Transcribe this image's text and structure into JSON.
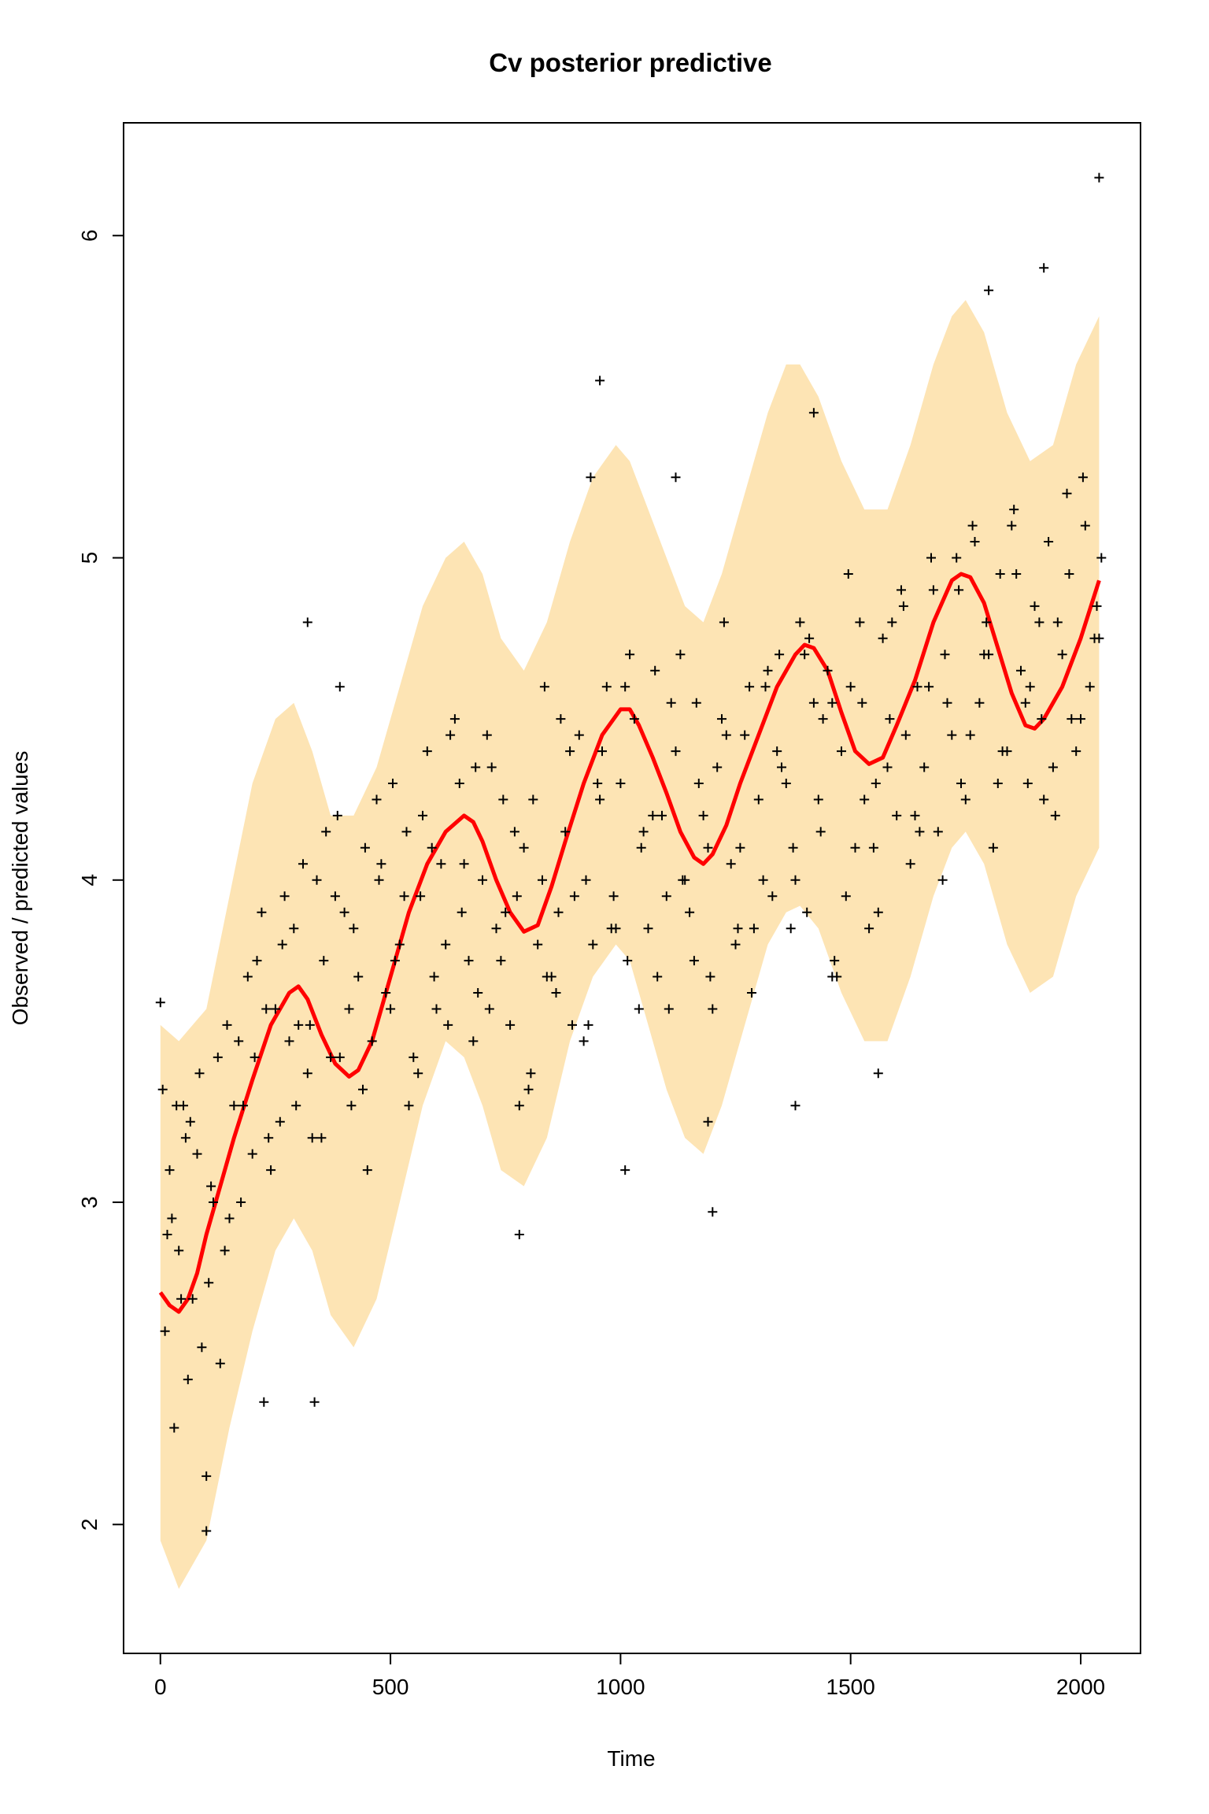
{
  "chart_data": {
    "type": "scatter",
    "title": "Cv posterior predictive",
    "xlabel": "Time",
    "ylabel": "Observed / predicted values",
    "xlim": [
      -80,
      2130
    ],
    "ylim": [
      1.6,
      6.35
    ],
    "xticks": [
      0,
      500,
      1000,
      1500,
      2000
    ],
    "xtick_labels": [
      "0",
      "500",
      "1000",
      "1500",
      "2000"
    ],
    "yticks": [
      2,
      3,
      4,
      5,
      6
    ],
    "ytick_labels": [
      "2",
      "3",
      "4",
      "5",
      "6"
    ],
    "grid": false,
    "colors": {
      "band": "#fde4b4",
      "mean_line": "#ff0000",
      "points": "#000000",
      "axes": "#000000"
    },
    "series": [
      {
        "kind": "band",
        "x": [
          0,
          40,
          100,
          150,
          200,
          250,
          290,
          330,
          370,
          420,
          470,
          520,
          570,
          620,
          660,
          700,
          740,
          790,
          840,
          890,
          940,
          990,
          1020,
          1060,
          1100,
          1140,
          1180,
          1220,
          1270,
          1320,
          1360,
          1390,
          1430,
          1480,
          1530,
          1580,
          1630,
          1680,
          1720,
          1750,
          1790,
          1840,
          1890,
          1940,
          1990,
          2040
        ],
        "lower": [
          1.95,
          1.8,
          1.95,
          2.3,
          2.6,
          2.85,
          2.95,
          2.85,
          2.65,
          2.55,
          2.7,
          3.0,
          3.3,
          3.5,
          3.45,
          3.3,
          3.1,
          3.05,
          3.2,
          3.5,
          3.7,
          3.8,
          3.75,
          3.55,
          3.35,
          3.2,
          3.15,
          3.3,
          3.55,
          3.8,
          3.9,
          3.92,
          3.85,
          3.65,
          3.5,
          3.5,
          3.7,
          3.95,
          4.1,
          4.15,
          4.05,
          3.8,
          3.65,
          3.7,
          3.95,
          4.1
        ],
        "upper": [
          3.55,
          3.5,
          3.6,
          3.95,
          4.3,
          4.5,
          4.55,
          4.4,
          4.2,
          4.2,
          4.35,
          4.6,
          4.85,
          5.0,
          5.05,
          4.95,
          4.75,
          4.65,
          4.8,
          5.05,
          5.25,
          5.35,
          5.3,
          5.15,
          5.0,
          4.85,
          4.8,
          4.95,
          5.2,
          5.45,
          5.6,
          5.6,
          5.5,
          5.3,
          5.15,
          5.15,
          5.35,
          5.6,
          5.75,
          5.8,
          5.7,
          5.45,
          5.3,
          5.35,
          5.6,
          5.75
        ]
      },
      {
        "kind": "line",
        "name": "",
        "x": [
          0,
          20,
          40,
          60,
          80,
          100,
          130,
          160,
          200,
          240,
          280,
          300,
          320,
          350,
          380,
          410,
          430,
          460,
          500,
          540,
          580,
          620,
          660,
          680,
          700,
          730,
          760,
          790,
          820,
          850,
          880,
          920,
          960,
          1000,
          1020,
          1040,
          1070,
          1100,
          1130,
          1160,
          1180,
          1200,
          1230,
          1260,
          1300,
          1340,
          1380,
          1400,
          1420,
          1450,
          1480,
          1510,
          1540,
          1570,
          1600,
          1640,
          1680,
          1720,
          1740,
          1760,
          1790,
          1820,
          1850,
          1880,
          1900,
          1920,
          1960,
          2000,
          2040
        ],
        "y": [
          2.72,
          2.68,
          2.66,
          2.7,
          2.78,
          2.9,
          3.05,
          3.2,
          3.38,
          3.55,
          3.65,
          3.67,
          3.63,
          3.52,
          3.43,
          3.39,
          3.41,
          3.5,
          3.7,
          3.9,
          4.05,
          4.15,
          4.2,
          4.18,
          4.12,
          4.0,
          3.9,
          3.84,
          3.86,
          3.98,
          4.12,
          4.3,
          4.45,
          4.53,
          4.53,
          4.48,
          4.38,
          4.27,
          4.15,
          4.07,
          4.05,
          4.08,
          4.17,
          4.3,
          4.45,
          4.6,
          4.7,
          4.73,
          4.72,
          4.65,
          4.52,
          4.4,
          4.36,
          4.38,
          4.48,
          4.62,
          4.8,
          4.93,
          4.95,
          4.94,
          4.86,
          4.72,
          4.58,
          4.48,
          4.47,
          4.5,
          4.6,
          4.75,
          4.93
        ]
      },
      {
        "kind": "points",
        "name": "",
        "marker": "+",
        "x": [
          0,
          10,
          20,
          30,
          40,
          55,
          70,
          85,
          100,
          115,
          130,
          145,
          160,
          175,
          190,
          205,
          220,
          235,
          250,
          265,
          280,
          295,
          310,
          325,
          340,
          355,
          370,
          385,
          400,
          415,
          430,
          445,
          460,
          475,
          490,
          505,
          520,
          535,
          550,
          565,
          580,
          595,
          610,
          625,
          640,
          655,
          670,
          685,
          700,
          715,
          730,
          745,
          760,
          775,
          790,
          805,
          820,
          835,
          850,
          865,
          880,
          895,
          910,
          925,
          940,
          955,
          970,
          985,
          1000,
          1015,
          1030,
          1045,
          1060,
          1075,
          1090,
          1105,
          1120,
          1135,
          1150,
          1165,
          1180,
          1195,
          1210,
          1225,
          1240,
          1255,
          1270,
          1285,
          1300,
          1315,
          1330,
          1345,
          1360,
          1375,
          1390,
          1405,
          1420,
          1435,
          1450,
          1465,
          1480,
          1495,
          1510,
          1525,
          1540,
          1555,
          1570,
          1585,
          1600,
          1615,
          1630,
          1645,
          1660,
          1675,
          1690,
          1705,
          1720,
          1735,
          1750,
          1765,
          1780,
          1795,
          1810,
          1825,
          1840,
          1855,
          1870,
          1885,
          1900,
          1915,
          1930,
          1945,
          1960,
          1975,
          1990,
          2005,
          2020,
          2035,
          2045,
          5,
          25,
          45,
          65,
          90,
          110,
          140,
          170,
          200,
          230,
          260,
          290,
          320,
          350,
          380,
          410,
          440,
          470,
          500,
          530,
          560,
          590,
          620,
          650,
          680,
          710,
          740,
          770,
          800,
          830,
          860,
          890,
          920,
          950,
          980,
          1010,
          1040,
          1070,
          1100,
          1130,
          1160,
          1190,
          1220,
          1250,
          1280,
          1310,
          1340,
          1370,
          1400,
          1430,
          1460,
          1490,
          1520,
          1550,
          1580,
          1610,
          1640,
          1670,
          1700,
          1730,
          1760,
          1790,
          1820,
          1850,
          1880,
          1910,
          1940,
          1970,
          2000,
          2030,
          15,
          35,
          60,
          80,
          105,
          125,
          150,
          180,
          210,
          240,
          270,
          300,
          330,
          360,
          390,
          420,
          450,
          480,
          510,
          540,
          570,
          600,
          630,
          660,
          690,
          720,
          750,
          780,
          810,
          840,
          870,
          900,
          930,
          960,
          990,
          1020,
          1050,
          1080,
          1110,
          1140,
          1170,
          1200,
          1230,
          1260,
          1290,
          1320,
          1350,
          1380,
          1410,
          1440,
          1470,
          1500,
          1530,
          1560,
          1590,
          1620,
          1650,
          1680,
          1710,
          1740,
          1770,
          1800,
          1830,
          1860,
          1890,
          1920,
          1950,
          1980,
          2010,
          2040,
          320,
          390,
          780,
          935,
          955,
          1200,
          1420,
          1800,
          1920,
          2040,
          50,
          100,
          225,
          335,
          1190,
          1010,
          1560,
          1460,
          1380,
          1120
        ],
        "y": [
          3.62,
          2.6,
          3.1,
          2.3,
          2.85,
          3.2,
          2.7,
          3.4,
          2.15,
          3.0,
          2.5,
          3.55,
          3.3,
          3.0,
          3.7,
          3.45,
          3.9,
          3.2,
          3.6,
          3.8,
          3.5,
          3.3,
          4.05,
          3.55,
          4.0,
          3.75,
          3.45,
          4.2,
          3.9,
          3.3,
          3.7,
          4.1,
          3.5,
          4.0,
          3.65,
          4.3,
          3.8,
          4.15,
          3.45,
          3.95,
          4.4,
          3.7,
          4.05,
          3.55,
          4.5,
          3.9,
          3.75,
          4.35,
          4.0,
          3.6,
          3.85,
          4.25,
          3.55,
          3.95,
          4.1,
          3.4,
          3.8,
          4.6,
          3.7,
          3.9,
          4.15,
          3.55,
          4.45,
          4.0,
          3.8,
          4.25,
          4.6,
          3.95,
          4.3,
          3.75,
          4.5,
          4.1,
          3.85,
          4.65,
          4.2,
          3.6,
          4.4,
          4.0,
          3.9,
          4.55,
          4.2,
          3.7,
          4.35,
          4.8,
          4.05,
          3.85,
          4.45,
          3.65,
          4.25,
          4.6,
          3.95,
          4.7,
          4.3,
          4.1,
          4.8,
          3.9,
          4.55,
          4.15,
          4.65,
          3.75,
          4.4,
          4.95,
          4.1,
          4.55,
          3.85,
          4.3,
          4.75,
          4.5,
          4.2,
          4.85,
          4.05,
          4.6,
          4.35,
          5.0,
          4.15,
          4.7,
          4.45,
          4.9,
          4.25,
          5.1,
          4.55,
          4.8,
          4.1,
          4.95,
          4.4,
          5.15,
          4.65,
          4.3,
          4.85,
          4.5,
          5.05,
          4.2,
          4.7,
          4.95,
          4.4,
          5.25,
          4.6,
          4.85,
          5.0,
          3.35,
          2.95,
          2.7,
          3.25,
          2.55,
          3.05,
          2.85,
          3.5,
          3.15,
          3.6,
          3.25,
          3.85,
          3.4,
          3.2,
          3.95,
          3.6,
          3.35,
          4.25,
          3.6,
          3.95,
          3.4,
          4.1,
          3.8,
          4.3,
          3.5,
          4.45,
          3.75,
          4.15,
          3.35,
          4.0,
          3.65,
          4.4,
          3.5,
          4.3,
          3.85,
          4.6,
          3.6,
          4.2,
          3.95,
          4.7,
          3.75,
          4.1,
          4.5,
          3.8,
          4.6,
          4.0,
          4.4,
          3.85,
          4.7,
          4.25,
          4.55,
          3.95,
          4.8,
          4.1,
          4.35,
          4.9,
          4.2,
          4.6,
          4.0,
          5.0,
          4.45,
          4.7,
          4.3,
          5.1,
          4.55,
          4.8,
          4.35,
          5.2,
          4.5,
          4.75,
          2.9,
          3.3,
          2.45,
          3.15,
          2.75,
          3.45,
          2.95,
          3.3,
          3.75,
          3.1,
          3.95,
          3.55,
          3.2,
          4.15,
          3.45,
          3.85,
          3.1,
          4.05,
          3.75,
          3.3,
          4.2,
          3.6,
          4.45,
          4.05,
          3.65,
          4.35,
          3.9,
          3.3,
          4.25,
          3.7,
          4.5,
          3.95,
          3.55,
          4.4,
          3.85,
          4.7,
          4.15,
          3.7,
          4.55,
          4.0,
          4.3,
          3.6,
          4.45,
          4.1,
          3.85,
          4.65,
          4.35,
          4.0,
          4.75,
          4.5,
          3.7,
          4.6,
          4.25,
          3.9,
          4.8,
          4.45,
          4.15,
          4.9,
          4.55,
          4.3,
          5.05,
          4.7,
          4.4,
          4.95,
          4.6,
          4.25,
          4.8,
          4.5,
          5.1,
          4.75,
          4.8,
          4.6,
          2.9,
          5.25,
          5.55,
          2.97,
          5.45,
          5.83,
          5.9,
          6.18,
          3.3,
          1.98,
          2.38,
          2.38,
          3.25,
          3.1,
          3.4,
          3.7,
          3.3,
          5.25
        ]
      }
    ]
  }
}
